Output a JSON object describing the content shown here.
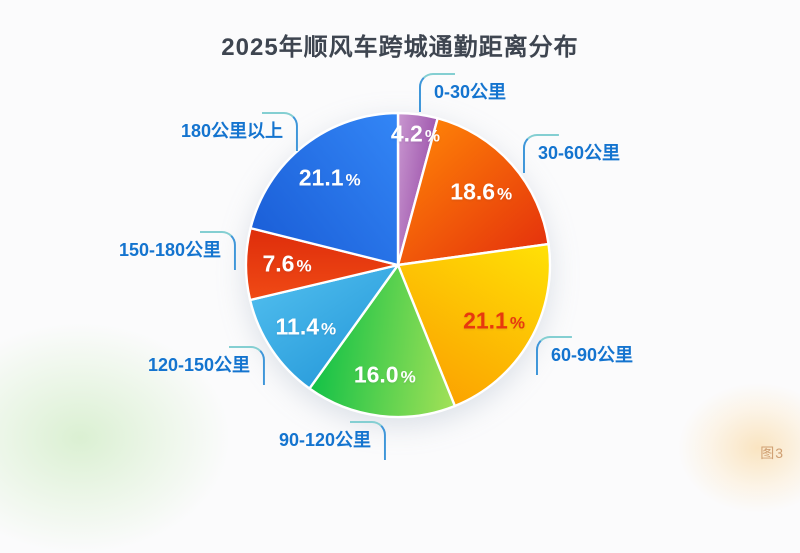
{
  "page": {
    "background": "#fbfbfc",
    "accent_label_color": "#1474cf",
    "title_color": "#3e4550"
  },
  "title": "2025年顺风车跨城通勤距离分布",
  "watermark": "图3",
  "percent_sign": "%",
  "chart_data": {
    "type": "pie",
    "title": "2025年顺风车跨城通勤距离分布",
    "start_angle_deg": 0,
    "direction": "clockwise",
    "total": 100.0,
    "legend_position": "outside-callouts",
    "callout_label_color": "#1474cf",
    "slices": [
      {
        "category": "0-30公里",
        "value": 4.2,
        "display_value": "4.2",
        "color_start": "#c998d0",
        "color_end": "#a159af",
        "value_label_color": "#ffffff"
      },
      {
        "category": "30-60公里",
        "value": 18.6,
        "display_value": "18.6",
        "color_start": "#fd7f07",
        "color_end": "#e5330c",
        "value_label_color": "#ffffff"
      },
      {
        "category": "60-90公里",
        "value": 21.1,
        "display_value": "21.1",
        "color_start": "#ffe106",
        "color_end": "#fba301",
        "value_label_color": "#e8380e"
      },
      {
        "category": "90-120公里",
        "value": 16.0,
        "display_value": "16.0",
        "color_start": "#a3e157",
        "color_end": "#12c147",
        "value_label_color": "#ffffff"
      },
      {
        "category": "120-150公里",
        "value": 11.4,
        "display_value": "11.4",
        "color_start": "#2d9fdd",
        "color_end": "#4cbaec",
        "value_label_color": "#ffffff"
      },
      {
        "category": "150-180公里",
        "value": 7.6,
        "display_value": "7.6",
        "color_start": "#f04a15",
        "color_end": "#de2d0b",
        "value_label_color": "#ffffff"
      },
      {
        "category": "180公里以上",
        "value": 21.1,
        "display_value": "21.1",
        "color_start": "#1b5fd8",
        "color_end": "#3386f6",
        "value_label_color": "#ffffff"
      }
    ]
  }
}
